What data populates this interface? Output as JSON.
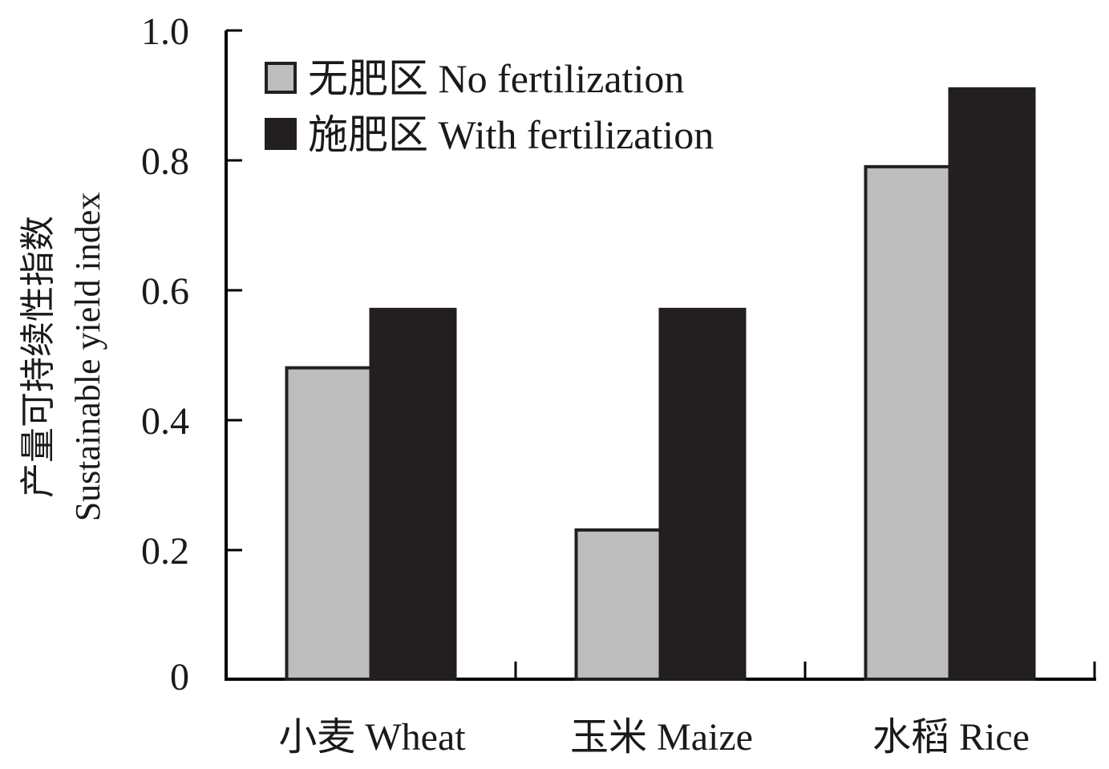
{
  "chart_data": {
    "type": "bar",
    "categories": [
      "小麦 Wheat",
      "玉米 Maize",
      "水稻 Rice"
    ],
    "series": [
      {
        "name": "无肥区 No fertilization",
        "color": "#bdbdbd",
        "values": [
          0.48,
          0.23,
          0.79
        ]
      },
      {
        "name": "施肥区 With fertilization",
        "color": "#231f20",
        "values": [
          0.57,
          0.57,
          0.91
        ]
      }
    ],
    "ylabel_lines": [
      "产量可持续性指数",
      "Sustainable yield index"
    ],
    "xlabel": "",
    "title": "",
    "ylim": [
      0,
      1.0
    ],
    "yticks": [
      "0",
      "0.2",
      "0.4",
      "0.6",
      "0.8",
      "1.0"
    ],
    "grid": false,
    "legend_position": "top-left"
  }
}
